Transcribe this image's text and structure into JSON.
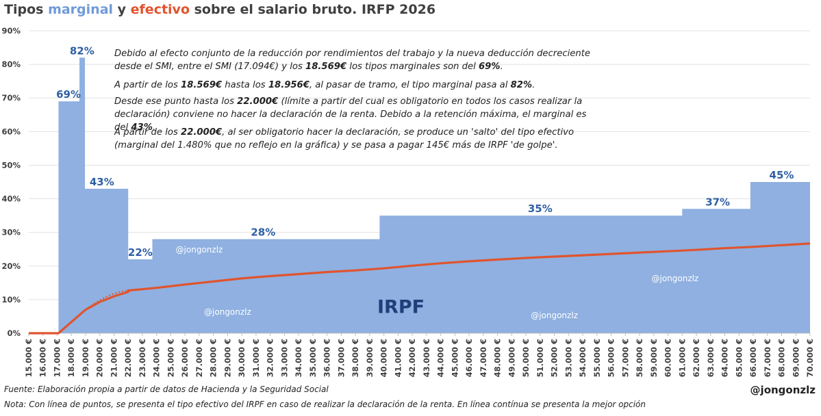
{
  "title": {
    "part1": "Tipos ",
    "marginal": "marginal",
    "part2": " y ",
    "efectivo": "efectivo",
    "part3": " sobre el salario bruto. IRFP 2026"
  },
  "colors": {
    "marginal_fill": "#8fb0e0",
    "effective_line": "#e0542e",
    "label_text": "#2e5fa3",
    "irpf_text": "#1f3f7a"
  },
  "notes": [
    {
      "segments": [
        {
          "t": "Debido al efecto conjunto de la reducción por rendimientos del trabajo y la nueva deducción decreciente desde el SMI, entre el SMI (",
          "b": false
        },
        {
          "t": "17.094€",
          "b": false
        },
        {
          "t": ") y los ",
          "b": false
        },
        {
          "t": "18.569€",
          "b": true
        },
        {
          "t": " los tipos marginales son del ",
          "b": false
        },
        {
          "t": "69%",
          "b": true
        },
        {
          "t": ".",
          "b": false
        }
      ]
    },
    {
      "segments": [
        {
          "t": "A partir de los ",
          "b": false
        },
        {
          "t": "18.569€",
          "b": true
        },
        {
          "t": " hasta los ",
          "b": false
        },
        {
          "t": "18.956€",
          "b": true
        },
        {
          "t": ", al pasar de tramo, el tipo marginal pasa al ",
          "b": false
        },
        {
          "t": "82%",
          "b": true
        },
        {
          "t": ".",
          "b": false
        }
      ]
    },
    {
      "segments": [
        {
          "t": "Desde ese punto hasta los ",
          "b": false
        },
        {
          "t": "22.000€",
          "b": true
        },
        {
          "t": " (límite a partir del cual es obligatorio en todos los casos realizar la declaración) conviene no hacer la declaración de la renta. Debido a la retención máxima, el marginal es del ",
          "b": false
        },
        {
          "t": "43%",
          "b": true
        },
        {
          "t": ".",
          "b": false
        }
      ]
    },
    {
      "segments": [
        {
          "t": "A partir de los ",
          "b": false
        },
        {
          "t": "22.000€",
          "b": true
        },
        {
          "t": ", al ser obligatorio hacer la declaración, se produce un 'salto' del tipo efectivo (marginal del 1.480% que no reflejo en la gráfica) y se pasa a pagar 145€ más de IRPF 'de golpe'.",
          "b": false
        }
      ]
    }
  ],
  "footer": {
    "source": "Fuente: Elaboración propia a partir de datos de Hacienda y la Seguridad Social",
    "nota": "Nota: Con línea de puntos, se presenta el tipo efectivo del IRPF en caso de realizar la declaración de la renta. En línea contínua se presenta la mejor opción",
    "handle": "@jongonzlz"
  },
  "chart_data": {
    "type": "area",
    "ylim": [
      0,
      90
    ],
    "xlim": [
      15000,
      70000
    ],
    "y_ticks": [
      "0%",
      "10%",
      "20%",
      "30%",
      "40%",
      "50%",
      "60%",
      "70%",
      "80%",
      "90%"
    ],
    "x_ticks": [
      "15.000 €",
      "16.000 €",
      "17.000 €",
      "18.000 €",
      "19.000 €",
      "20.000 €",
      "21.000 €",
      "22.000 €",
      "23.000 €",
      "24.000 €",
      "25.000 €",
      "26.000 €",
      "27.000 €",
      "28.000 €",
      "29.000 €",
      "30.000 €",
      "31.000 €",
      "32.000 €",
      "33.000 €",
      "34.000 €",
      "35.000 €",
      "36.000 €",
      "37.000 €",
      "38.000 €",
      "39.000 €",
      "40.000 €",
      "41.000 €",
      "42.000 €",
      "43.000 €",
      "44.000 €",
      "45.000 €",
      "46.000 €",
      "47.000 €",
      "48.000 €",
      "49.000 €",
      "50.000 €",
      "51.000 €",
      "52.000 €",
      "53.000 €",
      "54.000 €",
      "55.000 €",
      "56.000 €",
      "57.000 €",
      "58.000 €",
      "59.000 €",
      "60.000 €",
      "61.000 €",
      "62.000 €",
      "63.000 €",
      "64.000 €",
      "65.000 €",
      "66.000 €",
      "67.000 €",
      "68.000 €",
      "69.000 €",
      "70.000 €"
    ],
    "marginal_steps": [
      {
        "from": 17094,
        "to": 18569,
        "rate": 69
      },
      {
        "from": 18569,
        "to": 18956,
        "rate": 82
      },
      {
        "from": 18956,
        "to": 22000,
        "rate": 43
      },
      {
        "from": 22000,
        "to": 23700,
        "rate": 22
      },
      {
        "from": 23700,
        "to": 39700,
        "rate": 28
      },
      {
        "from": 39700,
        "to": 61000,
        "rate": 35
      },
      {
        "from": 61000,
        "to": 65800,
        "rate": 37
      },
      {
        "from": 65800,
        "to": 70000,
        "rate": 45
      }
    ],
    "marginal_labels": [
      {
        "text": "69%",
        "x": 17800,
        "y": 69
      },
      {
        "text": "82%",
        "x": 18750,
        "y": 82
      },
      {
        "text": "43%",
        "x": 20150,
        "y": 43
      },
      {
        "text": "22%",
        "x": 22850,
        "y": 22
      },
      {
        "text": "28%",
        "x": 31500,
        "y": 28
      },
      {
        "text": "35%",
        "x": 51000,
        "y": 35
      },
      {
        "text": "37%",
        "x": 63500,
        "y": 37
      },
      {
        "text": "45%",
        "x": 68000,
        "y": 45
      }
    ],
    "effective_solid": [
      [
        15000,
        0
      ],
      [
        17094,
        0
      ],
      [
        19000,
        7
      ],
      [
        20000,
        9.3
      ],
      [
        21000,
        11
      ],
      [
        22000,
        12.3
      ],
      [
        22000,
        12.7
      ],
      [
        24000,
        13.5
      ],
      [
        26000,
        14.5
      ],
      [
        28000,
        15.4
      ],
      [
        30000,
        16.3
      ],
      [
        32000,
        17.0
      ],
      [
        34000,
        17.6
      ],
      [
        36000,
        18.2
      ],
      [
        38000,
        18.7
      ],
      [
        40000,
        19.3
      ],
      [
        42000,
        20.1
      ],
      [
        44000,
        20.8
      ],
      [
        46000,
        21.4
      ],
      [
        48000,
        21.9
      ],
      [
        50000,
        22.4
      ],
      [
        52000,
        22.8
      ],
      [
        54000,
        23.2
      ],
      [
        56000,
        23.6
      ],
      [
        58000,
        24.0
      ],
      [
        60000,
        24.4
      ],
      [
        62000,
        24.8
      ],
      [
        64000,
        25.3
      ],
      [
        66000,
        25.7
      ],
      [
        68000,
        26.2
      ],
      [
        70000,
        26.7
      ]
    ],
    "effective_dotted": [
      [
        19000,
        7
      ],
      [
        19600,
        8.8
      ],
      [
        20200,
        10.3
      ],
      [
        20800,
        11.5
      ],
      [
        21400,
        12.3
      ],
      [
        22000,
        12.7
      ]
    ],
    "watermarks": [
      {
        "text": "@jongonzlz",
        "x": 27000,
        "y": 24
      },
      {
        "text": "@jongonzlz",
        "x": 60500,
        "y": 15.5
      },
      {
        "text": "@jongonzlz",
        "x": 29000,
        "y": 5.5
      },
      {
        "text": "@jongonzlz",
        "x": 52000,
        "y": 4.5
      }
    ],
    "center_label": {
      "text": "IRPF",
      "x": 41200,
      "y": 6
    }
  }
}
